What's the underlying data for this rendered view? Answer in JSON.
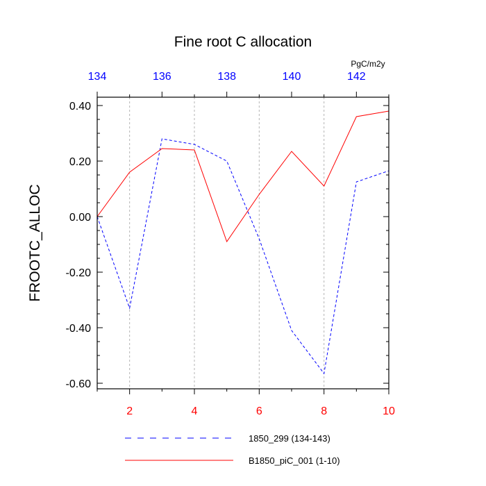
{
  "chart_data": {
    "type": "line",
    "title": "Fine root C allocation",
    "ylabel": "FROOTC_ALLOC",
    "units": "PgC/m2y",
    "ylim": [
      -0.62,
      0.43
    ],
    "yticks": [
      0.4,
      0.2,
      0.0,
      -0.2,
      -0.4,
      -0.6
    ],
    "ytick_labels": [
      "0.40",
      "0.20",
      "0.00",
      "-0.20",
      "-0.40",
      "-0.60"
    ],
    "x_bottom": {
      "range": [
        1,
        10
      ],
      "ticks": [
        2,
        4,
        6,
        8,
        10
      ],
      "tick_labels": [
        "2",
        "4",
        "6",
        "8",
        "10"
      ],
      "color": "#ff0000"
    },
    "x_top": {
      "range": [
        134,
        143
      ],
      "ticks": [
        134,
        136,
        138,
        140,
        142
      ],
      "tick_labels": [
        "134",
        "136",
        "138",
        "140",
        "142"
      ],
      "color": "#0000ff"
    },
    "grid": "vertical dashed gray at bottom-axis even ticks",
    "legend_position": "bottom",
    "series": [
      {
        "name": "1850_299 (134-143)",
        "axis": "top",
        "color": "#0000ff",
        "style": "dashed",
        "x": [
          134,
          135,
          136,
          137,
          138,
          139,
          140,
          141,
          142,
          143
        ],
        "values": [
          0.0,
          -0.33,
          0.28,
          0.26,
          0.2,
          -0.08,
          -0.41,
          -0.565,
          0.125,
          0.165
        ]
      },
      {
        "name": "B1850_piC_001 (1-10)",
        "axis": "bottom",
        "color": "#ff0000",
        "style": "solid",
        "x": [
          1,
          2,
          3,
          4,
          5,
          6,
          7,
          8,
          9,
          10
        ],
        "values": [
          0.0,
          0.16,
          0.245,
          0.24,
          -0.09,
          0.08,
          0.235,
          0.11,
          0.36,
          0.38
        ]
      }
    ]
  }
}
